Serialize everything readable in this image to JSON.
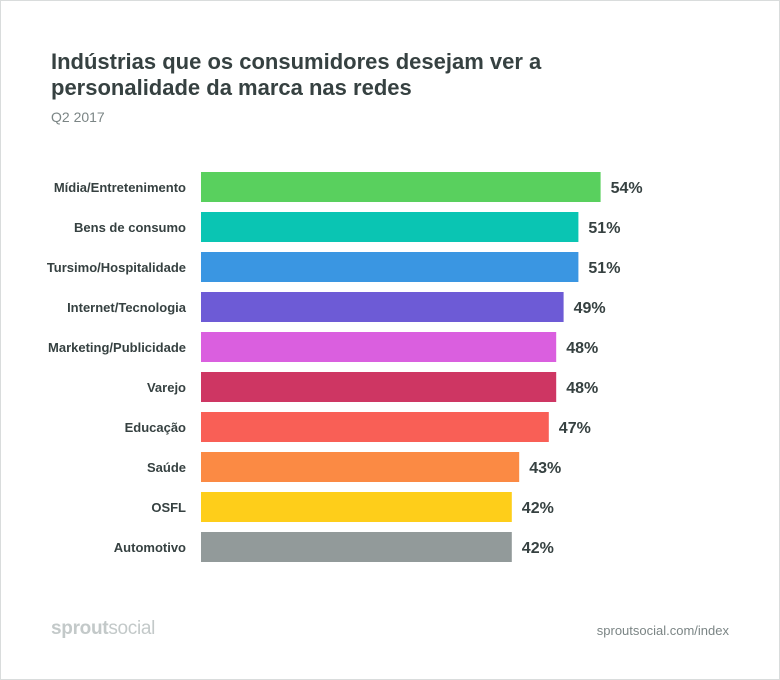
{
  "header": {
    "title": "Indústrias que os consumidores desejam ver a personalidade da marca nas redes",
    "subtitle": "Q2 2017"
  },
  "footer": {
    "brand_bold": "sprout",
    "brand_light": "social",
    "source": "sproutsocial.com/index"
  },
  "chart_data": {
    "type": "bar",
    "orientation": "horizontal",
    "title": "Indústrias que os consumidores desejam ver a personalidade da marca nas redes",
    "subtitle": "Q2 2017",
    "categories": [
      "Mídia/Entretenimento",
      "Bens de consumo",
      "Tursimo/Hospitalidade",
      "Internet/Tecnologia",
      "Marketing/Publicidade",
      "Varejo",
      "Educação",
      "Saúde",
      "OSFL",
      "Automotivo"
    ],
    "values": [
      54,
      51,
      51,
      49,
      48,
      48,
      47,
      43,
      42,
      42
    ],
    "value_labels": [
      "54%",
      "51%",
      "51%",
      "49%",
      "48%",
      "48%",
      "47%",
      "43%",
      "42%",
      "42%"
    ],
    "colors": [
      "#59d05e",
      "#0ac5b3",
      "#3a96e2",
      "#6d5bd6",
      "#da5fdf",
      "#ce3663",
      "#f95f56",
      "#fb8a44",
      "#fece1a",
      "#929a9a"
    ],
    "xlim": [
      0,
      100
    ],
    "grid": false,
    "legend": "none"
  }
}
